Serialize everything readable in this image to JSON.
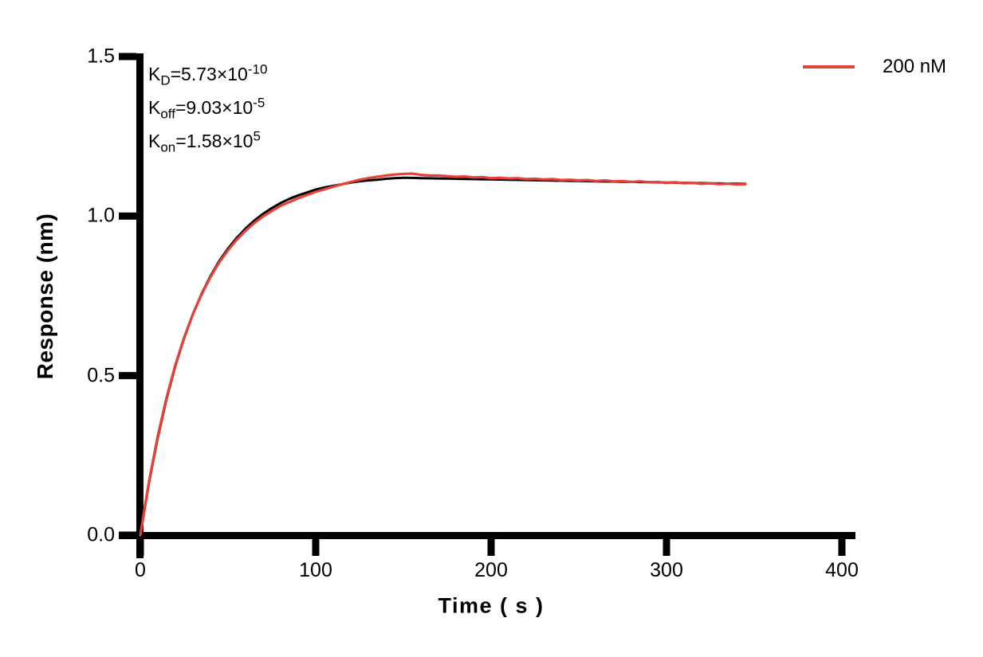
{
  "figure": {
    "background": "#ffffff",
    "axis_color": "#000000"
  },
  "kinetics": {
    "lines": [
      {
        "base": "K",
        "sub": "D",
        "mid": "=5.73×10",
        "exp": "-10"
      },
      {
        "base": "K",
        "sub": "off",
        "mid": "=9.03×10",
        "exp": "-5"
      },
      {
        "base": "K",
        "sub": "on",
        "mid": "=1.58×10",
        "exp": "5"
      }
    ]
  },
  "legend": {
    "label": "200 nM",
    "color": "#e8413a"
  },
  "chart_data": {
    "type": "line",
    "title": "",
    "xlabel": "Time ( s )",
    "ylabel": "Response (nm)",
    "xlim": [
      0,
      400
    ],
    "ylim": [
      0,
      1.5
    ],
    "grid": false,
    "legend_position": "top-right",
    "x_ticks": [
      0,
      100,
      200,
      300,
      400
    ],
    "y_ticks": [
      0,
      0.5,
      1,
      1.5
    ],
    "x_tick_labels": [
      "0",
      "100",
      "200",
      "300",
      "400"
    ],
    "y_tick_labels": [
      "0.0",
      "0.5",
      "1.0",
      "1.5"
    ],
    "annotations": [
      "KD=5.73×10^-10",
      "Koff=9.03×10^-5",
      "Kon=1.58×10^5"
    ],
    "x": [
      0,
      5,
      10,
      15,
      20,
      25,
      30,
      35,
      40,
      45,
      50,
      55,
      60,
      65,
      70,
      75,
      80,
      85,
      90,
      95,
      100,
      105,
      110,
      115,
      120,
      125,
      130,
      135,
      140,
      145,
      150,
      155,
      160,
      165,
      170,
      175,
      180,
      185,
      190,
      195,
      200,
      205,
      210,
      215,
      220,
      225,
      230,
      235,
      240,
      245,
      250,
      255,
      260,
      265,
      270,
      275,
      280,
      285,
      290,
      295,
      300,
      305,
      310,
      315,
      320,
      325,
      330,
      335,
      340,
      345
    ],
    "series": [
      {
        "name": "fit",
        "color": "#000000",
        "line_width": 3,
        "values": [
          0,
          0.166,
          0.307,
          0.428,
          0.531,
          0.618,
          0.693,
          0.757,
          0.812,
          0.859,
          0.898,
          0.932,
          0.961,
          0.986,
          1.007,
          1.025,
          1.041,
          1.054,
          1.065,
          1.074,
          1.083,
          1.09,
          1.095,
          1.1,
          1.105,
          1.109,
          1.112,
          1.114,
          1.117,
          1.119,
          1.12,
          1.1195,
          1.119,
          1.1185,
          1.118,
          1.1175,
          1.117,
          1.1165,
          1.116,
          1.1155,
          1.115,
          1.1145,
          1.114,
          1.1135,
          1.113,
          1.1125,
          1.112,
          1.1115,
          1.111,
          1.1105,
          1.11,
          1.1095,
          1.109,
          1.1085,
          1.1081,
          1.1076,
          1.1071,
          1.1066,
          1.1061,
          1.1056,
          1.1051,
          1.1046,
          1.1042,
          1.1037,
          1.1032,
          1.1027,
          1.1022,
          1.1018,
          1.1013,
          1.1008
        ]
      },
      {
        "name": "200 nM",
        "color": "#e8413a",
        "line_width": 3.2,
        "values": [
          0,
          0.17,
          0.312,
          0.432,
          0.534,
          0.62,
          0.693,
          0.755,
          0.809,
          0.855,
          0.893,
          0.926,
          0.954,
          0.978,
          0.999,
          1.016,
          1.032,
          1.044,
          1.056,
          1.066,
          1.076,
          1.084,
          1.092,
          1.1,
          1.107,
          1.114,
          1.119,
          1.123,
          1.127,
          1.13,
          1.132,
          1.133,
          1.129,
          1.127,
          1.127,
          1.125,
          1.123,
          1.124,
          1.121,
          1.122,
          1.119,
          1.12,
          1.118,
          1.119,
          1.116,
          1.117,
          1.115,
          1.116,
          1.113,
          1.114,
          1.112,
          1.113,
          1.11,
          1.112,
          1.109,
          1.11,
          1.107,
          1.109,
          1.106,
          1.107,
          1.104,
          1.106,
          1.103,
          1.104,
          1.101,
          1.103,
          1.1,
          1.102,
          1.099,
          1.1
        ]
      }
    ]
  }
}
